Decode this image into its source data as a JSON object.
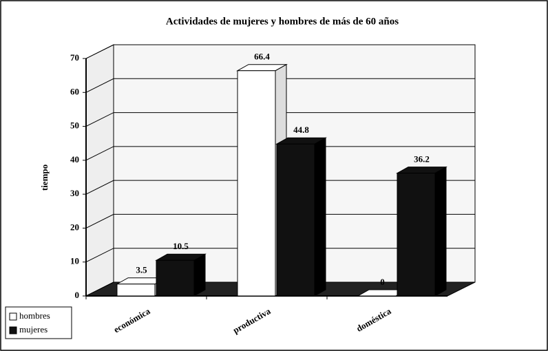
{
  "chart_data": {
    "type": "bar3d",
    "title": "Actividades de mujeres y hombres de más de 60 años",
    "y_label": "tiempo",
    "categories": [
      "económica",
      "productiva",
      "doméstica"
    ],
    "series": [
      {
        "name": "hombres",
        "color": "#ffffff",
        "values": [
          3.5,
          66.4,
          0
        ]
      },
      {
        "name": "mujeres",
        "color": "#111111",
        "values": [
          10.5,
          44.8,
          36.2
        ]
      }
    ],
    "ylim": [
      0,
      70
    ],
    "yticks": [
      0,
      10,
      20,
      30,
      40,
      50,
      60,
      70
    ],
    "grid": true,
    "legend": "bottom-left"
  }
}
